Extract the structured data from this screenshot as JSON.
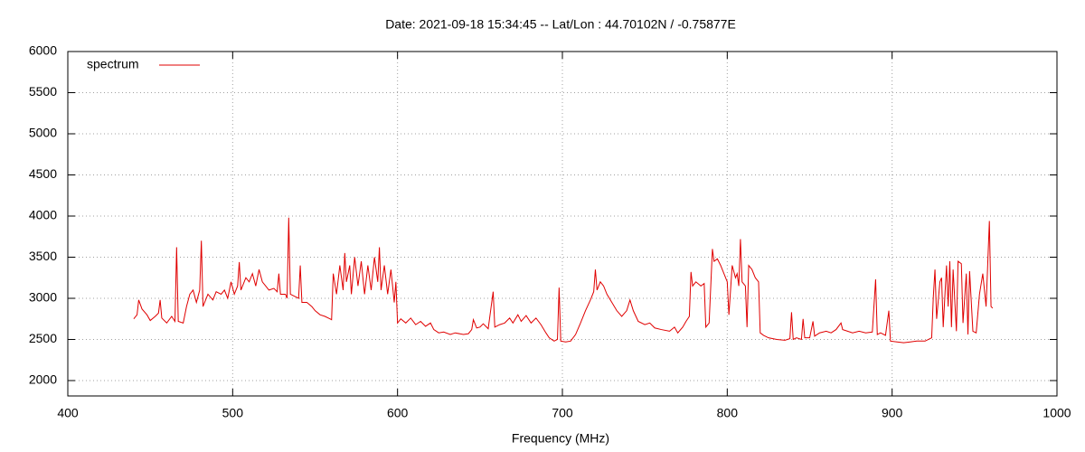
{
  "chart_data": {
    "type": "line",
    "title": "Date: 2021-09-18 15:34:45  --  Lat/Lon : 44.70102N / -0.75877E",
    "x_label": "Frequency (MHz)",
    "xlim": [
      400,
      1000
    ],
    "xticks": [
      400,
      500,
      600,
      700,
      800,
      900,
      1000
    ],
    "ylim": [
      1813,
      6000
    ],
    "yticks": [
      2000,
      2500,
      3000,
      3500,
      4000,
      4500,
      5000,
      5500,
      6000
    ],
    "grid": true,
    "legend": "top-left",
    "x": [
      440,
      442,
      443,
      445,
      448,
      450,
      453,
      455,
      456,
      457,
      460,
      463,
      465,
      466,
      467,
      470,
      472,
      474,
      476,
      478,
      480,
      481,
      482,
      485,
      488,
      490,
      493,
      495,
      497,
      499,
      501,
      503,
      504,
      505,
      508,
      510,
      512,
      514,
      516,
      518,
      520,
      522,
      525,
      527,
      528,
      529,
      532,
      533,
      534,
      535,
      538,
      540,
      541,
      542,
      545,
      548,
      550,
      553,
      556,
      559,
      560,
      561,
      563,
      565,
      567,
      568,
      569,
      571,
      572,
      574,
      576,
      578,
      580,
      582,
      584,
      586,
      588,
      589,
      590,
      592,
      594,
      596,
      598,
      599,
      600,
      602,
      605,
      608,
      611,
      614,
      617,
      620,
      622,
      625,
      628,
      632,
      635,
      640,
      643,
      645,
      646,
      648,
      650,
      652,
      655,
      658,
      659,
      662,
      665,
      668,
      670,
      673,
      675,
      678,
      681,
      684,
      687,
      690,
      692,
      695,
      697,
      698,
      699,
      702,
      705,
      708,
      711,
      714,
      717,
      719,
      720,
      721,
      723,
      725,
      727,
      730,
      733,
      736,
      739,
      741,
      743,
      746,
      750,
      753,
      756,
      760,
      765,
      768,
      770,
      773,
      775,
      777,
      778,
      779,
      781,
      784,
      786,
      787,
      789,
      791,
      792,
      794,
      796,
      798,
      800,
      801,
      803,
      805,
      806,
      807,
      808,
      809,
      811,
      812,
      813,
      815,
      817,
      819,
      820,
      822,
      825,
      830,
      835,
      838,
      839,
      840,
      842,
      845,
      846,
      847,
      850,
      852,
      853,
      856,
      860,
      863,
      866,
      869,
      870,
      873,
      876,
      880,
      884,
      888,
      890,
      891,
      893,
      896,
      898,
      899,
      903,
      907,
      911,
      915,
      920,
      924,
      925,
      926,
      927,
      929,
      930,
      931,
      933,
      934,
      935,
      936,
      937,
      939,
      940,
      942,
      943,
      945,
      946,
      947,
      949,
      951,
      953,
      955,
      957,
      959,
      960,
      961
    ],
    "series": [
      {
        "name": "spectrum",
        "color": "#e00000",
        "values": [
          2750,
          2800,
          2980,
          2870,
          2800,
          2730,
          2780,
          2820,
          2980,
          2760,
          2700,
          2780,
          2720,
          3620,
          2720,
          2700,
          2900,
          3050,
          3100,
          2950,
          3100,
          3700,
          2900,
          3050,
          2980,
          3080,
          3050,
          3100,
          3000,
          3200,
          3050,
          3150,
          3440,
          3100,
          3250,
          3200,
          3300,
          3150,
          3350,
          3200,
          3150,
          3100,
          3120,
          3080,
          3300,
          3050,
          3050,
          3000,
          3980,
          3050,
          3020,
          3000,
          3400,
          2950,
          2950,
          2900,
          2850,
          2800,
          2780,
          2750,
          2740,
          3300,
          3050,
          3400,
          3100,
          3550,
          3200,
          3400,
          3050,
          3500,
          3150,
          3450,
          3050,
          3400,
          3100,
          3500,
          3200,
          3620,
          3100,
          3400,
          3050,
          3350,
          2950,
          3200,
          2700,
          2750,
          2700,
          2760,
          2680,
          2720,
          2660,
          2700,
          2620,
          2580,
          2590,
          2560,
          2580,
          2560,
          2570,
          2620,
          2740,
          2640,
          2650,
          2690,
          2630,
          3080,
          2650,
          2680,
          2700,
          2760,
          2700,
          2800,
          2720,
          2790,
          2700,
          2760,
          2680,
          2580,
          2520,
          2480,
          2500,
          3130,
          2480,
          2470,
          2480,
          2560,
          2700,
          2850,
          2980,
          3080,
          3350,
          3100,
          3200,
          3150,
          3050,
          2950,
          2850,
          2780,
          2850,
          2980,
          2850,
          2720,
          2680,
          2700,
          2640,
          2620,
          2600,
          2650,
          2580,
          2650,
          2720,
          2780,
          3320,
          3150,
          3200,
          3150,
          3180,
          2650,
          2700,
          3600,
          3450,
          3480,
          3400,
          3300,
          3200,
          2800,
          3400,
          3250,
          3300,
          3150,
          3720,
          3200,
          3150,
          2650,
          3400,
          3350,
          3250,
          3200,
          2580,
          2550,
          2520,
          2500,
          2490,
          2510,
          2830,
          2500,
          2520,
          2500,
          2750,
          2520,
          2520,
          2720,
          2540,
          2580,
          2600,
          2580,
          2620,
          2700,
          2620,
          2600,
          2580,
          2600,
          2580,
          2590,
          3230,
          2560,
          2580,
          2550,
          2850,
          2480,
          2470,
          2460,
          2470,
          2480,
          2480,
          2520,
          3020,
          3350,
          2750,
          3200,
          3250,
          2650,
          3400,
          2900,
          3450,
          2650,
          3350,
          2600,
          3450,
          3420,
          2700,
          3300,
          2560,
          3330,
          2600,
          2580,
          3050,
          3300,
          2900,
          3940,
          2900,
          2880
        ]
      }
    ]
  }
}
